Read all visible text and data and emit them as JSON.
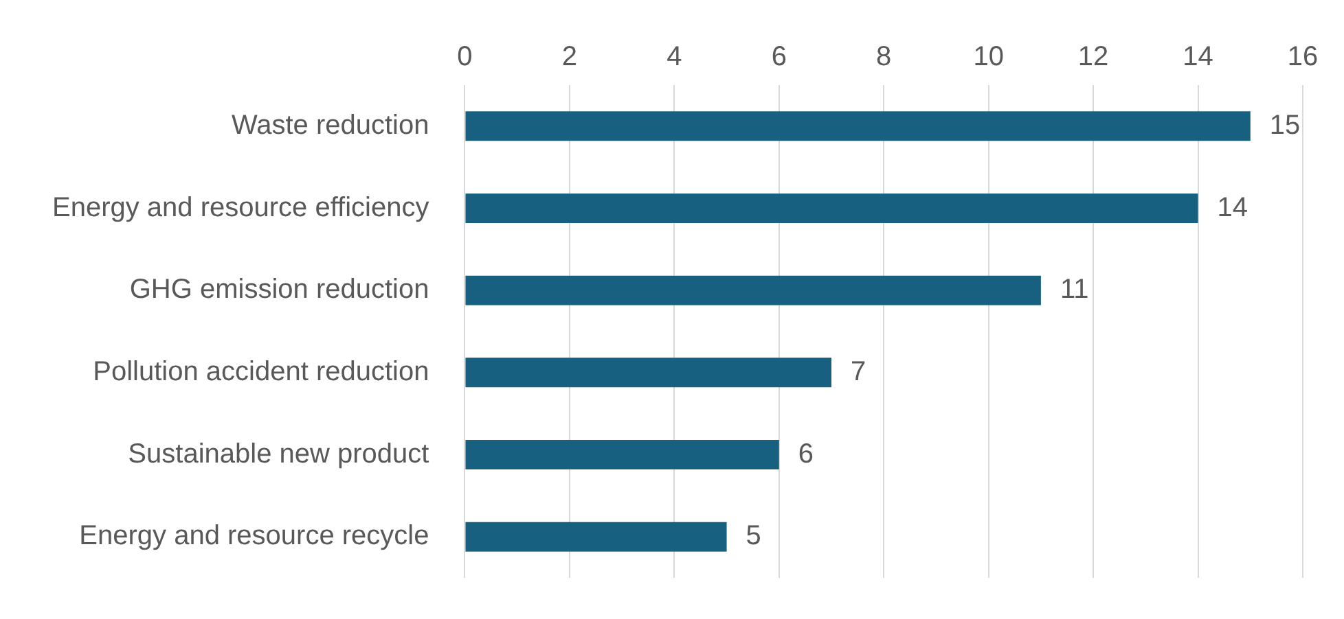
{
  "chart_data": {
    "type": "bar",
    "orientation": "horizontal",
    "categories": [
      "Waste reduction",
      "Energy and resource efficiency",
      "GHG emission reduction",
      "Pollution accident reduction",
      "Sustainable new product",
      "Energy and resource recycle"
    ],
    "values": [
      15,
      14,
      11,
      7,
      6,
      5
    ],
    "color": "#17607f",
    "xlim": [
      0,
      16
    ],
    "xticks": [
      0,
      2,
      4,
      6,
      8,
      10,
      12,
      14,
      16
    ],
    "grid": "x",
    "data_labels": true
  }
}
